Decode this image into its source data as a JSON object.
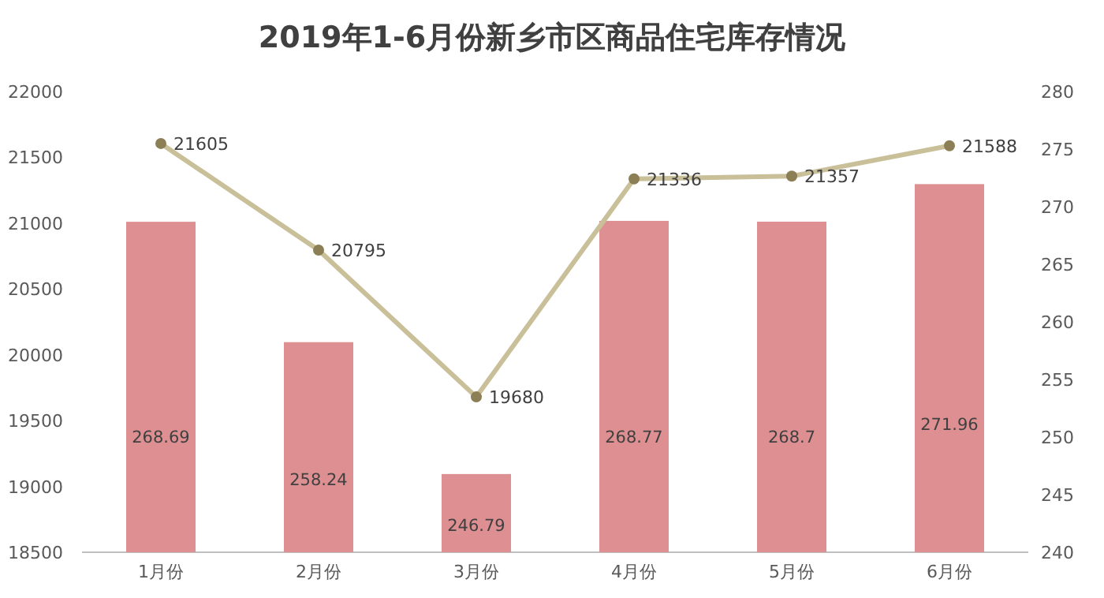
{
  "chart_data": {
    "type": "bar",
    "title": "2019年1-6月份新乡市区商品住宅库存情况",
    "categories": [
      "1月份",
      "2月份",
      "3月份",
      "4月份",
      "5月份",
      "6月份"
    ],
    "series": [
      {
        "axis": "y2",
        "color": "#dd8f91",
        "values": [
          268.69,
          258.24,
          246.79,
          268.77,
          268.7,
          271.96
        ]
      },
      {
        "type": "line",
        "axis": "y",
        "color": "#c9c09a",
        "values": [
          21605,
          20795,
          19680,
          21336,
          21357,
          21588
        ]
      }
    ],
    "ylim": [
      18500,
      22000
    ],
    "yticks": [
      18500,
      19000,
      19500,
      20000,
      20500,
      21000,
      21500,
      22000
    ],
    "y2lim": [
      240,
      280
    ],
    "y2ticks": [
      240,
      245,
      250,
      255,
      260,
      265,
      270,
      275,
      280
    ],
    "data_labels": true,
    "marker": "circle",
    "line_style": "solid"
  }
}
